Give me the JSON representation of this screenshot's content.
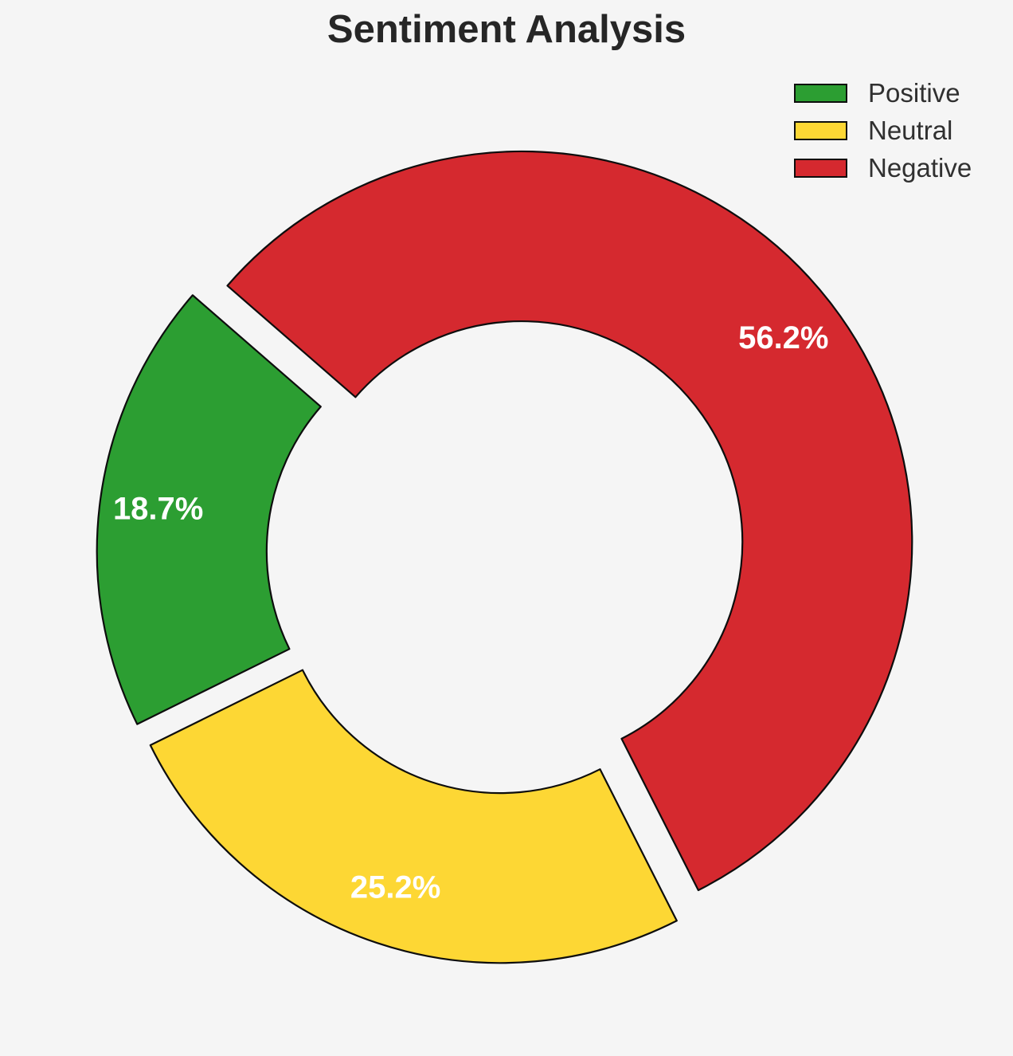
{
  "chart_data": {
    "type": "pie",
    "variant": "donut",
    "title": "Sentiment Analysis",
    "slices": [
      {
        "label": "Positive",
        "value": 18.7,
        "pct_label": "18.7%",
        "color": "#2c9e32"
      },
      {
        "label": "Neutral",
        "value": 25.2,
        "pct_label": "25.2%",
        "color": "#fdd734"
      },
      {
        "label": "Negative",
        "value": 56.2,
        "pct_label": "56.2%",
        "color": "#d5292f"
      }
    ],
    "start_angle_deg": 139,
    "direction": "counterclockwise",
    "donut_hole_ratio": 0.565,
    "explode_ratio": 0.05,
    "pct_label_distance": 0.85,
    "pct_label_color": "#ffffff",
    "edge_color": "#0d0d0d",
    "background_color": "#f5f5f5",
    "legend_position": "upper right",
    "legend_frame": false
  }
}
